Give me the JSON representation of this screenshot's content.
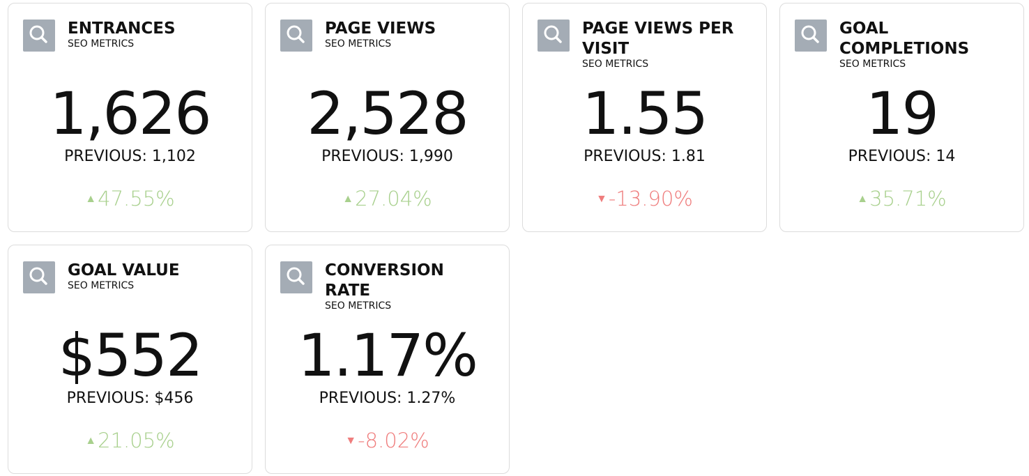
{
  "cards": [
    {
      "title": "ENTRANCES",
      "subtitle": "SEO METRICS",
      "value": "1,626",
      "previous": "PREVIOUS: 1,102",
      "change": "47.55%"
    },
    {
      "title": "PAGE VIEWS",
      "subtitle": "SEO METRICS",
      "value": "2,528",
      "previous": "PREVIOUS: 1,990",
      "change": "27.04%"
    },
    {
      "title": "PAGE VIEWS PER VISIT",
      "subtitle": "SEO METRICS",
      "value": "1.55",
      "previous": "PREVIOUS: 1.81",
      "change": "-13.90%"
    },
    {
      "title": "GOAL COMPLETIONS",
      "subtitle": "SEO METRICS",
      "value": "19",
      "previous": "PREVIOUS: 14",
      "change": "35.71%"
    },
    {
      "title": "GOAL VALUE",
      "subtitle": "SEO METRICS",
      "value": "$552",
      "previous": "PREVIOUS: $456",
      "change": "21.05%"
    },
    {
      "title": "CONVERSION RATE",
      "subtitle": "SEO METRICS",
      "value": "1.17%",
      "previous": "PREVIOUS: 1.27%",
      "change": "-8.02%"
    }
  ]
}
